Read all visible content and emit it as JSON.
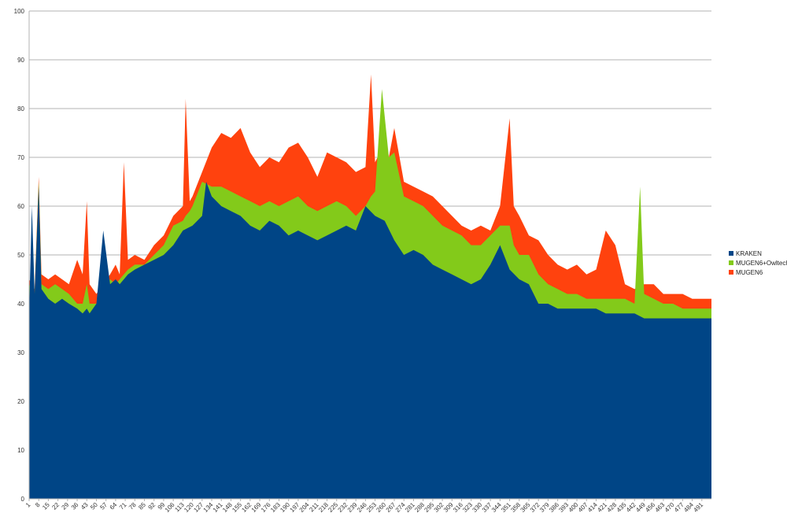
{
  "chart_data": {
    "type": "area",
    "title": "",
    "xlabel": "",
    "ylabel": "",
    "ylim": [
      0,
      100
    ],
    "yticks": [
      0,
      10,
      20,
      30,
      40,
      50,
      60,
      70,
      80,
      90,
      100
    ],
    "x_range": [
      1,
      498
    ],
    "xticks": [
      1,
      8,
      15,
      22,
      29,
      36,
      43,
      50,
      57,
      64,
      71,
      78,
      85,
      92,
      99,
      106,
      113,
      120,
      127,
      134,
      141,
      148,
      155,
      162,
      169,
      176,
      183,
      190,
      197,
      204,
      211,
      218,
      225,
      232,
      239,
      246,
      253,
      260,
      267,
      274,
      281,
      288,
      295,
      302,
      309,
      316,
      323,
      330,
      337,
      344,
      351,
      358,
      365,
      372,
      379,
      386,
      393,
      400,
      407,
      414,
      421,
      428,
      435,
      442,
      449,
      456,
      463,
      470,
      477,
      484,
      491
    ],
    "legend_position": "right",
    "grid": true,
    "series": [
      {
        "name": "MUGEN6",
        "color": "#ff420e",
        "x": [
          1,
          5,
          8,
          10,
          15,
          20,
          25,
          30,
          36,
          40,
          43,
          45,
          50,
          55,
          60,
          64,
          67,
          70,
          73,
          78,
          85,
          92,
          99,
          106,
          113,
          115,
          118,
          120,
          127,
          134,
          141,
          148,
          155,
          162,
          169,
          176,
          183,
          190,
          197,
          204,
          211,
          218,
          225,
          232,
          239,
          246,
          250,
          253,
          260,
          263,
          267,
          274,
          281,
          288,
          295,
          302,
          309,
          316,
          323,
          330,
          337,
          344,
          351,
          354,
          358,
          365,
          372,
          379,
          386,
          393,
          400,
          407,
          414,
          421,
          428,
          435,
          442,
          449,
          456,
          463,
          470,
          477,
          484,
          491,
          498
        ],
        "values": [
          45,
          43,
          66,
          46,
          45,
          46,
          45,
          44,
          49,
          46,
          61,
          44,
          42,
          44,
          46,
          48,
          46,
          69,
          49,
          50,
          49,
          52,
          54,
          58,
          60,
          82,
          61,
          62,
          67,
          72,
          75,
          74,
          76,
          71,
          68,
          70,
          69,
          72,
          73,
          70,
          66,
          71,
          70,
          69,
          67,
          68,
          87,
          69,
          73,
          70,
          76,
          65,
          64,
          63,
          62,
          60,
          58,
          56,
          55,
          56,
          55,
          60,
          78,
          60,
          58,
          54,
          53,
          50,
          48,
          47,
          48,
          46,
          47,
          55,
          52,
          44,
          43,
          44,
          44,
          42,
          42,
          42,
          41,
          41,
          41
        ]
      },
      {
        "name": "MUGEN6+Owltech",
        "color": "#83ca1a",
        "x": [
          1,
          5,
          8,
          10,
          15,
          20,
          25,
          30,
          36,
          40,
          43,
          45,
          50,
          55,
          60,
          64,
          67,
          70,
          73,
          78,
          85,
          92,
          99,
          106,
          113,
          115,
          118,
          120,
          127,
          134,
          141,
          148,
          155,
          162,
          169,
          176,
          183,
          190,
          197,
          204,
          211,
          218,
          225,
          232,
          239,
          246,
          250,
          253,
          258,
          263,
          267,
          274,
          281,
          288,
          295,
          302,
          309,
          316,
          323,
          330,
          337,
          344,
          351,
          354,
          358,
          365,
          372,
          379,
          386,
          393,
          400,
          407,
          414,
          421,
          428,
          435,
          442,
          446,
          449,
          456,
          463,
          470,
          477,
          484,
          491,
          498
        ],
        "values": [
          44,
          42,
          65,
          44,
          43,
          44,
          43,
          42,
          40,
          40,
          44,
          40,
          40,
          43,
          45,
          44,
          45,
          46,
          47,
          48,
          48,
          50,
          52,
          56,
          57,
          58,
          59,
          60,
          65,
          64,
          64,
          63,
          62,
          61,
          60,
          61,
          60,
          61,
          62,
          60,
          59,
          60,
          61,
          60,
          58,
          60,
          62,
          63,
          84,
          70,
          71,
          62,
          61,
          60,
          58,
          56,
          55,
          54,
          52,
          52,
          54,
          56,
          56,
          52,
          50,
          50,
          46,
          44,
          43,
          42,
          42,
          41,
          41,
          41,
          41,
          41,
          40,
          64,
          42,
          41,
          40,
          40,
          39,
          39,
          39,
          39
        ]
      },
      {
        "name": "KRAKEN",
        "color": "#004586",
        "x": [
          1,
          3,
          5,
          8,
          10,
          15,
          20,
          25,
          30,
          36,
          40,
          43,
          45,
          50,
          55,
          60,
          64,
          67,
          70,
          73,
          78,
          85,
          92,
          99,
          106,
          113,
          120,
          127,
          130,
          134,
          141,
          148,
          155,
          162,
          169,
          176,
          183,
          190,
          197,
          204,
          211,
          218,
          225,
          232,
          239,
          246,
          253,
          260,
          267,
          274,
          281,
          288,
          295,
          302,
          309,
          316,
          323,
          330,
          337,
          344,
          351,
          358,
          365,
          372,
          379,
          386,
          393,
          400,
          407,
          414,
          421,
          428,
          435,
          442,
          449,
          456,
          463,
          470,
          477,
          484,
          491,
          498
        ],
        "values": [
          38,
          60,
          42,
          64,
          43,
          41,
          40,
          41,
          40,
          39,
          38,
          39,
          38,
          40,
          55,
          44,
          45,
          44,
          45,
          46,
          47,
          48,
          49,
          50,
          52,
          55,
          56,
          58,
          65,
          62,
          60,
          59,
          58,
          56,
          55,
          57,
          56,
          54,
          55,
          54,
          53,
          54,
          55,
          56,
          55,
          60,
          58,
          57,
          53,
          50,
          51,
          50,
          48,
          47,
          46,
          45,
          44,
          45,
          48,
          52,
          47,
          45,
          44,
          40,
          40,
          39,
          39,
          39,
          39,
          39,
          38,
          38,
          38,
          38,
          37,
          37,
          37,
          37,
          37,
          37,
          37,
          37
        ]
      }
    ],
    "legend": [
      "KRAKEN",
      "MUGEN6+Owltech",
      "MUGEN6"
    ]
  }
}
